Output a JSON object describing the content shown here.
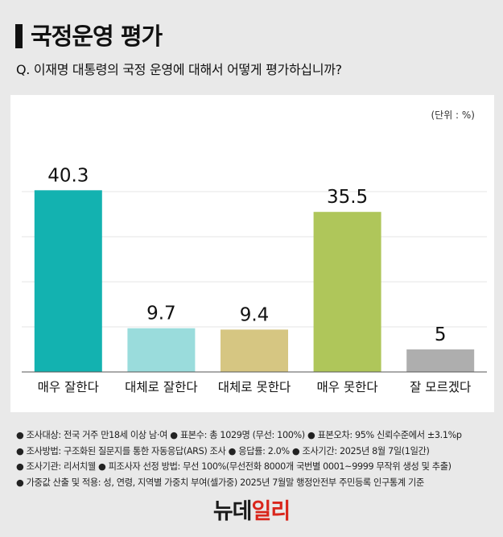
{
  "header": {
    "title": "국정운영 평가",
    "question": "Q. 이재명 대통령의 국정 운영에 대해서 어떻게 평가하십니까?"
  },
  "chart_data": {
    "type": "bar",
    "unit_label": "(단위 : %)",
    "categories": [
      "매우 잘한다",
      "대체로 잘한다",
      "대체로 못한다",
      "매우 못한다",
      "잘 모르겠다"
    ],
    "values": [
      40.3,
      9.7,
      9.4,
      35.5,
      5
    ],
    "value_labels": [
      "40.3",
      "9.7",
      "9.4",
      "35.5",
      "5"
    ],
    "colors": [
      "#13b2b0",
      "#9adcdc",
      "#d6c682",
      "#afc65a",
      "#aeaeae"
    ],
    "ylim": [
      0,
      50
    ],
    "grid": true,
    "xlabel": "",
    "ylabel": ""
  },
  "notes": [
    "● 조사대상: 전국 거주 만18세 이상 남·여  ● 표본수: 총 1029명 (무선: 100%)  ● 표본오차: 95% 신뢰수준에서 ±3.1%p",
    "● 조사방법: 구조화된 질문지를 통한 자동응답(ARS) 조사  ● 응답률: 2.0%  ● 조사기간: 2025년 8월 7일(1일간)",
    "● 조사기관: 리서치웰  ● 피조사자 선정 방법: 무선 100%(무선전화 8000개 국번별 0001~9999 무작위 생성 및 추출)",
    "● 가중값 산출 및 적용: 성, 연령, 지역별 가중치 부여(셀가중) 2025년 7월말 행정안전부 주민등록 인구통계 기준"
  ],
  "footer": {
    "logo_main": "뉴데",
    "logo_accent": "일리"
  }
}
